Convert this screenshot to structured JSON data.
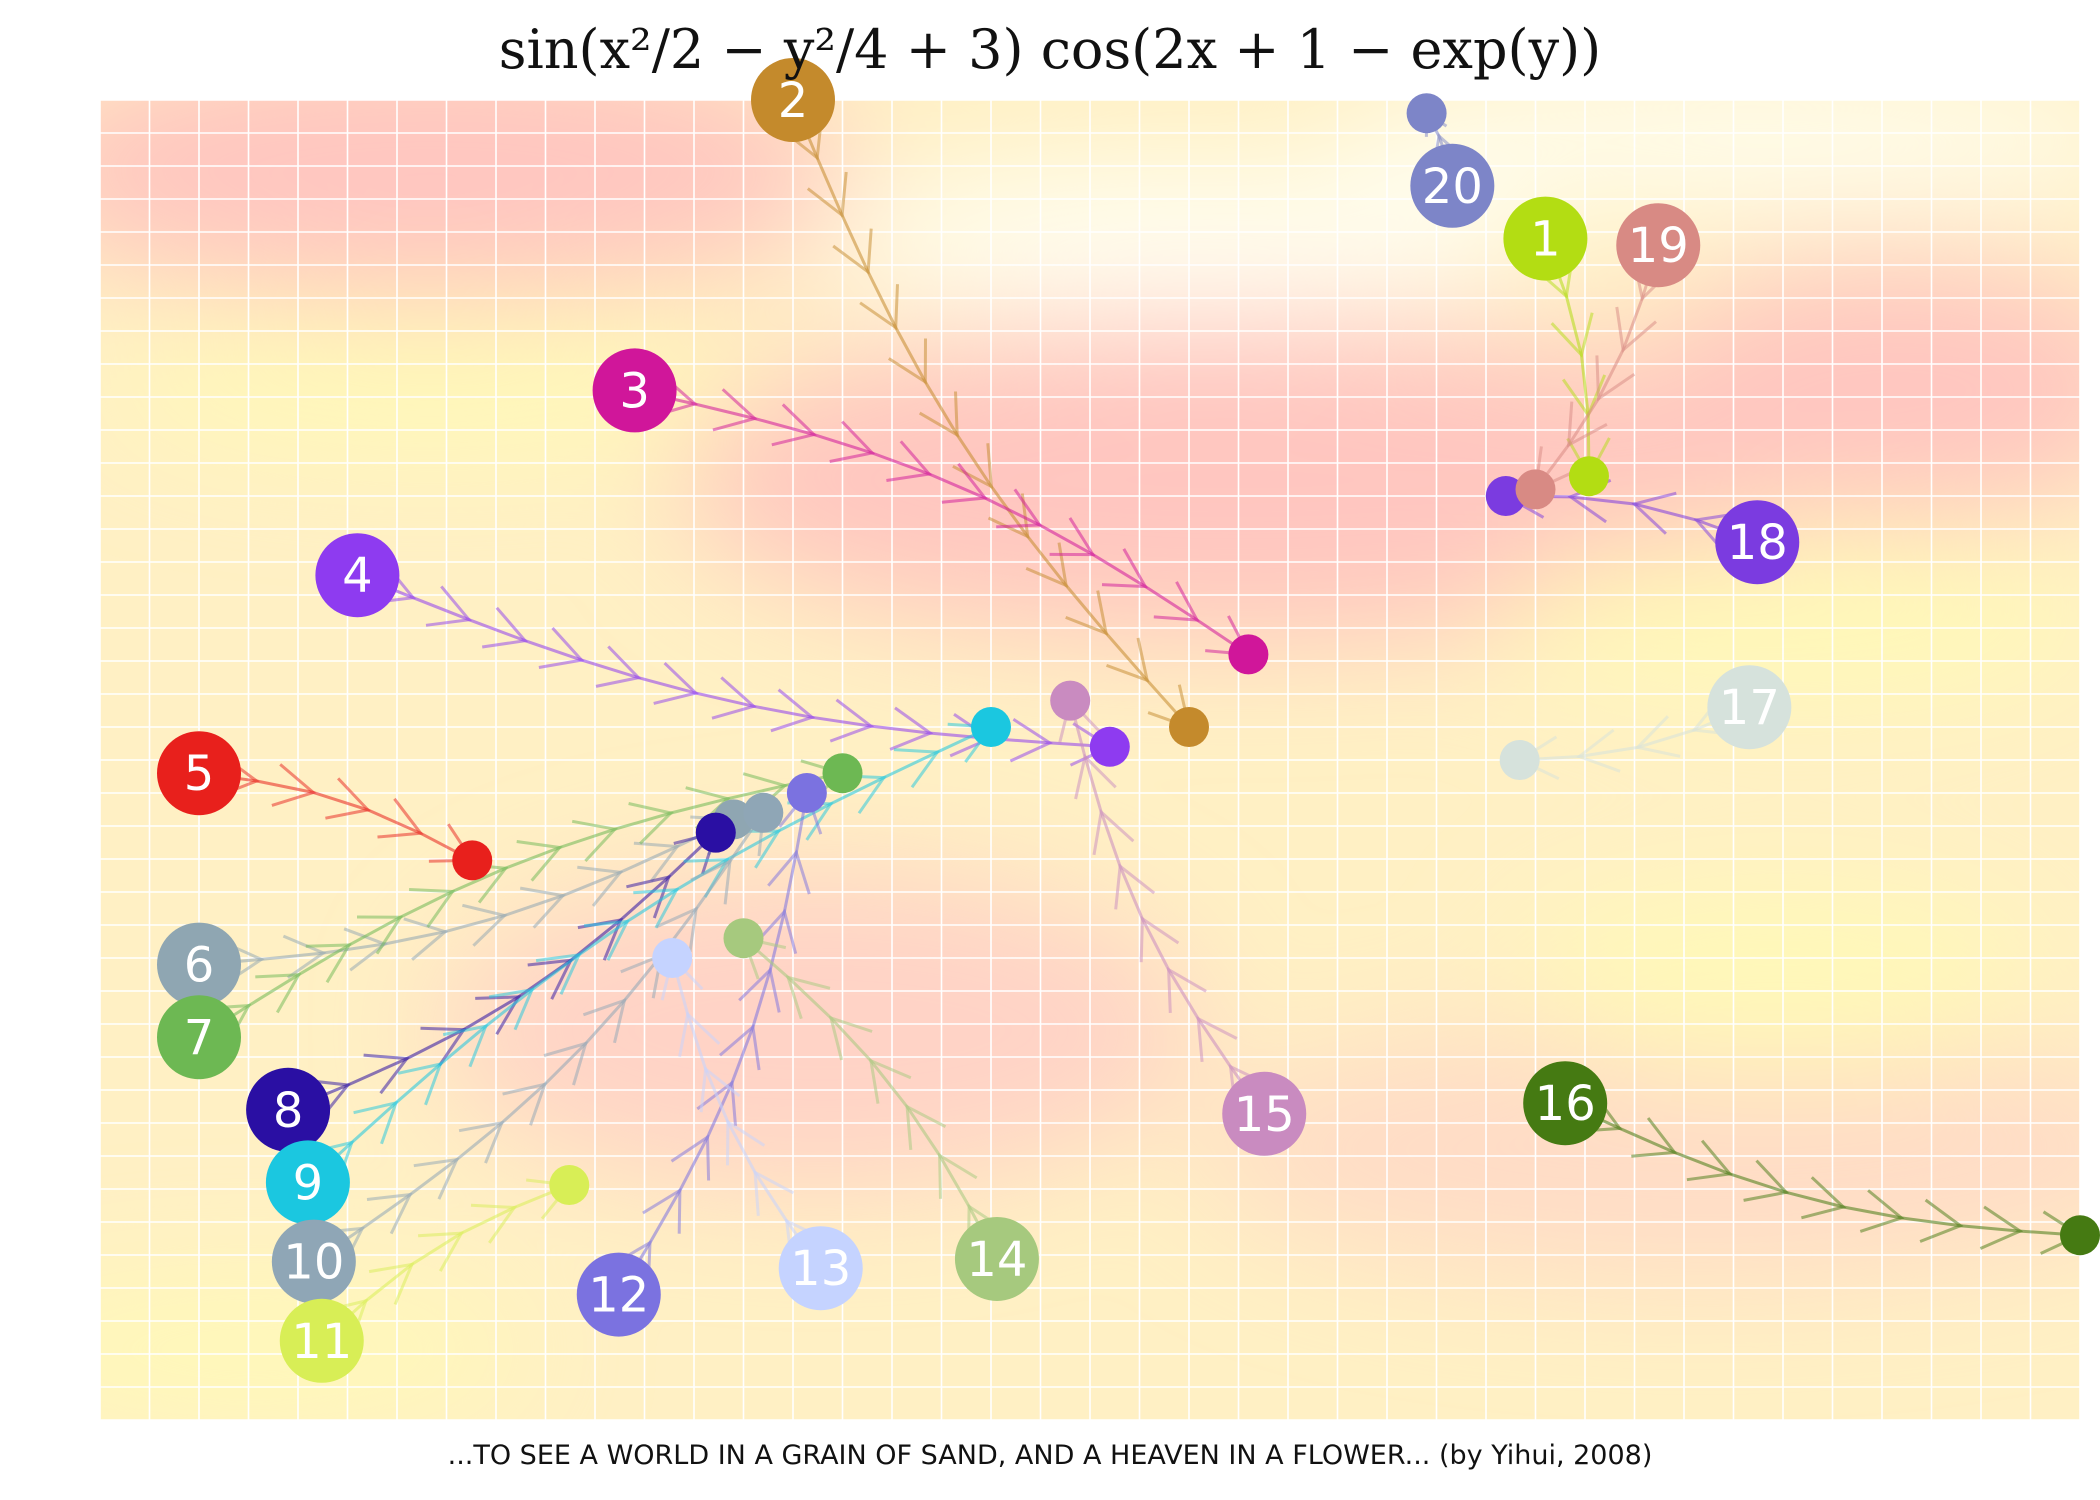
{
  "title": "sin(x²/2 − y²/4 + 3) cos(2x + 1 − exp(y))",
  "caption": "...TO SEE A WORLD IN A GRAIN OF SAND, AND A HEAVEN IN A FLOWER... (by Yihui, 2008)",
  "chart_data": {
    "type": "scatter",
    "title": "sin(x²/2 − y²/4 + 3) cos(2x + 1 − exp(y))",
    "xlabel": "",
    "ylabel": "",
    "xlim": [
      0,
      1
    ],
    "ylim": [
      0,
      1
    ],
    "grid": true,
    "background": "heatmap of sin(x²/2 − y²/4 + 3) cos(2x + 1 − exp(y))",
    "points": [
      {
        "label": "1",
        "color": "#b3dd13",
        "start": [
          0.73,
          0.895
        ],
        "end": [
          0.752,
          0.715
        ]
      },
      {
        "label": "2",
        "color": "#c48a2c",
        "start": [
          0.35,
          1.0
        ],
        "end": [
          0.55,
          0.525
        ]
      },
      {
        "label": "3",
        "color": "#d0169a",
        "start": [
          0.27,
          0.78
        ],
        "end": [
          0.58,
          0.58
        ]
      },
      {
        "label": "4",
        "color": "#8e3bf0",
        "start": [
          0.13,
          0.64
        ],
        "end": [
          0.51,
          0.51
        ]
      },
      {
        "label": "5",
        "color": "#e8201c",
        "start": [
          0.05,
          0.49
        ],
        "end": [
          0.188,
          0.424
        ]
      },
      {
        "label": "6",
        "color": "#8fa6b2",
        "start": [
          0.05,
          0.345
        ],
        "end": [
          0.32,
          0.455
        ]
      },
      {
        "label": "7",
        "color": "#6db853",
        "start": [
          0.05,
          0.29
        ],
        "end": [
          0.375,
          0.49
        ]
      },
      {
        "label": "8",
        "color": "#2a0fa3",
        "start": [
          0.095,
          0.235
        ],
        "end": [
          0.311,
          0.445
        ]
      },
      {
        "label": "9",
        "color": "#1bc7e0",
        "start": [
          0.105,
          0.18
        ],
        "end": [
          0.45,
          0.525
        ]
      },
      {
        "label": "10",
        "color": "#8fa6b6",
        "start": [
          0.108,
          0.12
        ],
        "end": [
          0.335,
          0.46
        ]
      },
      {
        "label": "11",
        "color": "#d8ee56",
        "start": [
          0.112,
          0.06
        ],
        "end": [
          0.237,
          0.178
        ]
      },
      {
        "label": "12",
        "color": "#7b72e0",
        "start": [
          0.262,
          0.095
        ],
        "end": [
          0.357,
          0.475
        ]
      },
      {
        "label": "13",
        "color": "#c5d3ff",
        "start": [
          0.364,
          0.115
        ],
        "end": [
          0.289,
          0.35
        ]
      },
      {
        "label": "14",
        "color": "#a6c97e",
        "start": [
          0.453,
          0.122
        ],
        "end": [
          0.325,
          0.365
        ]
      },
      {
        "label": "15",
        "color": "#c98bc0",
        "start": [
          0.588,
          0.232
        ],
        "end": [
          0.49,
          0.545
        ]
      },
      {
        "label": "16",
        "color": "#457a12",
        "start": [
          0.74,
          0.24
        ],
        "end": [
          1.0,
          0.14
        ]
      },
      {
        "label": "17",
        "color": "#d6e2dc",
        "start": [
          0.833,
          0.54
        ],
        "end": [
          0.717,
          0.5
        ]
      },
      {
        "label": "18",
        "color": "#7b3be0",
        "start": [
          0.837,
          0.665
        ],
        "end": [
          0.71,
          0.7
        ]
      },
      {
        "label": "19",
        "color": "#d88a84",
        "start": [
          0.787,
          0.89
        ],
        "end": [
          0.725,
          0.705
        ]
      },
      {
        "label": "20",
        "color": "#7d85c8",
        "start": [
          0.683,
          0.935
        ],
        "end": [
          0.67,
          0.99
        ]
      }
    ]
  }
}
